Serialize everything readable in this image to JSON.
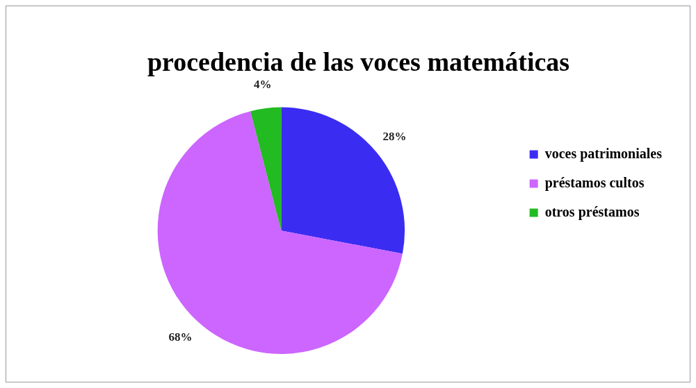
{
  "chart_data": {
    "type": "pie",
    "title": "procedencia de las voces matemáticas",
    "categories": [
      "voces patrimoniales",
      "préstamos cultos",
      "otros préstamos"
    ],
    "values": [
      28,
      68,
      4
    ],
    "colors": [
      "#3b2cf2",
      "#cc66ff",
      "#22bb22"
    ],
    "value_labels": [
      "28%",
      "68%",
      "4%"
    ],
    "legend": "right"
  }
}
